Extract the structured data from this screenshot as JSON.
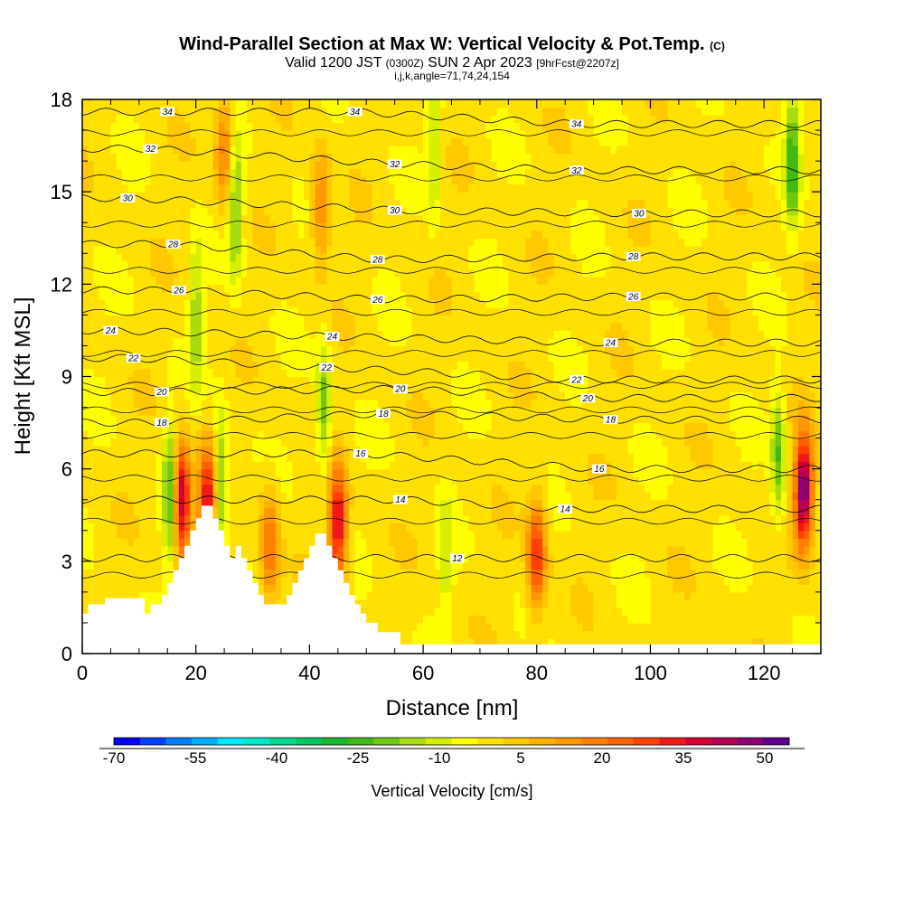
{
  "header": {
    "title": "Wind-Parallel Section at Max W: Vertical Velocity & Pot.Temp.",
    "copyright": "(C)",
    "valid_prefix": "Valid 1200 JST",
    "valid_utc": "(0300Z)",
    "valid_date": "SUN 2 Apr 2023",
    "forecast": "[9hrFcst@2207z]",
    "indices": "i,j,k,angle=71,74,24,154"
  },
  "chart_data": {
    "type": "heatmap",
    "xlabel": "Distance [nm]",
    "ylabel": "Height [Kft MSL]",
    "xlim": [
      0,
      130
    ],
    "ylim": [
      0,
      18
    ],
    "x_ticks": [
      "0",
      "20",
      "40",
      "60",
      "80",
      "100",
      "120"
    ],
    "y_ticks": [
      "0",
      "3",
      "6",
      "9",
      "12",
      "15",
      "18"
    ],
    "colorbar": {
      "label": "Vertical Velocity [cm/s]",
      "tick_labels": [
        "-70",
        "-55",
        "-40",
        "-25",
        "-10",
        "5",
        "20",
        "35",
        "50"
      ],
      "levels": [
        -70,
        -65,
        -60,
        -55,
        -50,
        -45,
        -40,
        -35,
        -30,
        -25,
        -20,
        -15,
        -10,
        -5,
        0,
        5,
        10,
        15,
        20,
        25,
        30,
        35,
        40,
        45,
        50,
        55
      ],
      "colors": [
        "#0000ff",
        "#0040ff",
        "#0080ff",
        "#00b0ff",
        "#00e8ff",
        "#00e8c8",
        "#00d890",
        "#00c860",
        "#18b830",
        "#40b818",
        "#70c810",
        "#a8dc10",
        "#d8f000",
        "#ffff00",
        "#ffe000",
        "#ffc800",
        "#ffb000",
        "#ff9800",
        "#ff8000",
        "#ff6000",
        "#ff4000",
        "#f01818",
        "#d80030",
        "#b80050",
        "#900070",
        "#600090"
      ]
    },
    "terrain": [
      [
        0,
        1.3
      ],
      [
        1,
        1.3
      ],
      [
        1,
        1.6
      ],
      [
        4,
        1.6
      ],
      [
        4,
        1.8
      ],
      [
        8,
        1.8
      ],
      [
        11,
        1.8
      ],
      [
        11,
        1.3
      ],
      [
        12,
        1.3
      ],
      [
        12,
        1.6
      ],
      [
        14,
        1.6
      ],
      [
        14,
        1.9
      ],
      [
        15,
        1.9
      ],
      [
        15,
        2.3
      ],
      [
        16,
        2.3
      ],
      [
        16,
        2.7
      ],
      [
        17,
        2.7
      ],
      [
        17,
        3.1
      ],
      [
        18,
        3.1
      ],
      [
        18,
        3.5
      ],
      [
        19,
        3.5
      ],
      [
        19,
        4.0
      ],
      [
        20,
        4.0
      ],
      [
        20,
        4.4
      ],
      [
        21,
        4.4
      ],
      [
        21,
        4.8
      ],
      [
        23,
        4.8
      ],
      [
        23,
        4.4
      ],
      [
        24,
        4.4
      ],
      [
        24,
        4.0
      ],
      [
        25,
        4.0
      ],
      [
        25,
        3.5
      ],
      [
        26,
        3.5
      ],
      [
        26,
        3.1
      ],
      [
        27,
        3.1
      ],
      [
        27,
        3.5
      ],
      [
        28,
        3.5
      ],
      [
        28,
        3.1
      ],
      [
        29,
        3.1
      ],
      [
        29,
        2.7
      ],
      [
        30,
        2.7
      ],
      [
        30,
        2.3
      ],
      [
        31,
        2.3
      ],
      [
        31,
        1.9
      ],
      [
        32,
        1.9
      ],
      [
        32,
        1.6
      ],
      [
        36,
        1.6
      ],
      [
        36,
        1.9
      ],
      [
        37,
        1.9
      ],
      [
        37,
        2.3
      ],
      [
        38,
        2.3
      ],
      [
        38,
        2.7
      ],
      [
        39,
        2.7
      ],
      [
        39,
        3.1
      ],
      [
        40,
        3.1
      ],
      [
        40,
        3.5
      ],
      [
        41,
        3.5
      ],
      [
        41,
        3.9
      ],
      [
        43,
        3.9
      ],
      [
        43,
        3.5
      ],
      [
        44,
        3.5
      ],
      [
        44,
        3.1
      ],
      [
        45,
        3.1
      ],
      [
        45,
        2.7
      ],
      [
        46,
        2.7
      ],
      [
        46,
        2.3
      ],
      [
        47,
        2.3
      ],
      [
        47,
        1.9
      ],
      [
        48,
        1.9
      ],
      [
        48,
        1.6
      ],
      [
        49,
        1.6
      ],
      [
        49,
        1.3
      ],
      [
        50,
        1.3
      ],
      [
        50,
        1.0
      ],
      [
        52,
        1.0
      ],
      [
        52,
        0.7
      ],
      [
        56,
        0.7
      ],
      [
        56,
        0.3
      ],
      [
        60,
        0.3
      ],
      [
        130,
        0.3
      ]
    ],
    "updrafts": [
      {
        "x": 17.5,
        "z": 5.0,
        "w": 48
      },
      {
        "x": 22.0,
        "z": 5.0,
        "w": 38
      },
      {
        "x": 45.0,
        "z": 4.2,
        "w": 42
      },
      {
        "x": 80.0,
        "z": 3.2,
        "w": 34
      },
      {
        "x": 127.0,
        "z": 5.3,
        "w": 56
      },
      {
        "x": 25.0,
        "z": 16.5,
        "w": 22
      },
      {
        "x": 42.0,
        "z": 14.5,
        "w": 20
      },
      {
        "x": 33.0,
        "z": 3.5,
        "w": 25
      }
    ],
    "downdrafts": [
      {
        "x": 15.5,
        "z": 5.2,
        "w": -28
      },
      {
        "x": 24.5,
        "z": 5.5,
        "w": -22
      },
      {
        "x": 27.0,
        "z": 14.5,
        "w": -22
      },
      {
        "x": 20.0,
        "z": 11.0,
        "w": -16
      },
      {
        "x": 42.5,
        "z": 8.0,
        "w": -20
      },
      {
        "x": 62.0,
        "z": 16.5,
        "w": -14
      },
      {
        "x": 125.0,
        "z": 16.0,
        "w": -26
      },
      {
        "x": 122.5,
        "z": 6.5,
        "w": -22
      },
      {
        "x": 64.0,
        "z": 3.0,
        "w": -10
      }
    ],
    "isentrope_labels": [
      {
        "value": "34",
        "x": 15,
        "z": 17.6
      },
      {
        "value": "34",
        "x": 48,
        "z": 17.6
      },
      {
        "value": "34",
        "x": 87,
        "z": 17.2
      },
      {
        "value": "32",
        "x": 12,
        "z": 16.4
      },
      {
        "value": "32",
        "x": 55,
        "z": 15.9
      },
      {
        "value": "32",
        "x": 87,
        "z": 15.7
      },
      {
        "value": "30",
        "x": 8,
        "z": 14.8
      },
      {
        "value": "30",
        "x": 55,
        "z": 14.4
      },
      {
        "value": "30",
        "x": 98,
        "z": 14.3
      },
      {
        "value": "28",
        "x": 16,
        "z": 13.3
      },
      {
        "value": "28",
        "x": 52,
        "z": 12.8
      },
      {
        "value": "28",
        "x": 97,
        "z": 12.9
      },
      {
        "value": "26",
        "x": 17,
        "z": 11.8
      },
      {
        "value": "26",
        "x": 52,
        "z": 11.5
      },
      {
        "value": "26",
        "x": 97,
        "z": 11.6
      },
      {
        "value": "24",
        "x": 5,
        "z": 10.5
      },
      {
        "value": "24",
        "x": 44,
        "z": 10.3
      },
      {
        "value": "24",
        "x": 93,
        "z": 10.1
      },
      {
        "value": "22",
        "x": 9,
        "z": 9.6
      },
      {
        "value": "22",
        "x": 43,
        "z": 9.3
      },
      {
        "value": "22",
        "x": 87,
        "z": 8.9
      },
      {
        "value": "20",
        "x": 14,
        "z": 8.5
      },
      {
        "value": "20",
        "x": 56,
        "z": 8.6
      },
      {
        "value": "20",
        "x": 89,
        "z": 8.3
      },
      {
        "value": "18",
        "x": 14,
        "z": 7.5
      },
      {
        "value": "18",
        "x": 53,
        "z": 7.8
      },
      {
        "value": "18",
        "x": 93,
        "z": 7.6
      },
      {
        "value": "16",
        "x": 49,
        "z": 6.5
      },
      {
        "value": "16",
        "x": 91,
        "z": 6.0
      },
      {
        "value": "14",
        "x": 56,
        "z": 5.0
      },
      {
        "value": "14",
        "x": 85,
        "z": 4.7
      },
      {
        "value": "12",
        "x": 66,
        "z": 3.1
      }
    ]
  }
}
